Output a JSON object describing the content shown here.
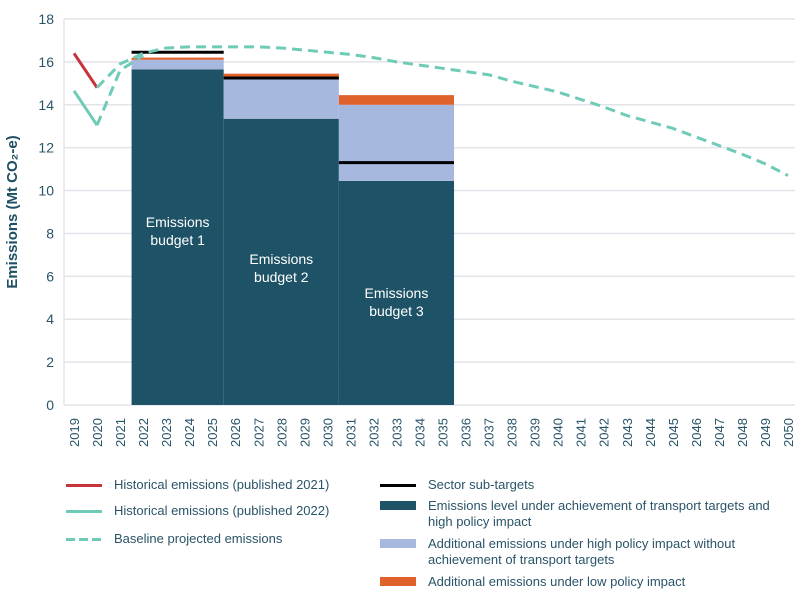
{
  "chart_data": {
    "type": "bar",
    "ylabel": "Emissions (Mt CO₂-e)",
    "ylim": [
      0,
      18
    ],
    "yticks": [
      "0",
      "2",
      "4",
      "6",
      "8",
      "10",
      "12",
      "14",
      "16",
      "18"
    ],
    "x": [
      2019,
      2020,
      2021,
      2022,
      2023,
      2024,
      2025,
      2026,
      2027,
      2028,
      2029,
      2030,
      2031,
      2032,
      2033,
      2034,
      2035,
      2036,
      2037,
      2038,
      2039,
      2040,
      2041,
      2042,
      2043,
      2044,
      2045,
      2046,
      2047,
      2048,
      2049,
      2050
    ],
    "grid": "horizontal",
    "legend_placement": "bottom",
    "colors": {
      "historical_2021": "#c8323a",
      "historical_2022": "#6fcbb8",
      "baseline": "#6fcbb8",
      "sub_targets": "#000000",
      "level_high": "#1e5266",
      "additional_high": "#a7b8de",
      "additional_low": "#e0622b"
    },
    "lines": [
      {
        "name": "Historical emissions (published 2021)",
        "style": "solid",
        "x": [
          2019,
          2020
        ],
        "y": [
          16.4,
          14.8
        ]
      },
      {
        "name": "Historical emissions (published 2022)",
        "style": "solid",
        "x": [
          2019,
          2020
        ],
        "y": [
          14.65,
          13.05
        ]
      },
      {
        "name": "Baseline projected emissions",
        "style": "dashed",
        "x": [
          2020,
          2021,
          2022,
          2023,
          2024,
          2025,
          2026,
          2027,
          2028,
          2029,
          2030,
          2031,
          2032,
          2033,
          2034,
          2035,
          2036,
          2037,
          2038,
          2039,
          2040,
          2041,
          2042,
          2043,
          2044,
          2045,
          2046,
          2047,
          2048,
          2049,
          2050
        ],
        "y": [
          14.8,
          15.9,
          16.4,
          16.65,
          16.7,
          16.7,
          16.7,
          16.7,
          16.65,
          16.55,
          16.45,
          16.35,
          16.2,
          16.0,
          15.85,
          15.7,
          15.55,
          15.4,
          15.1,
          14.85,
          14.6,
          14.25,
          13.9,
          13.5,
          13.2,
          12.9,
          12.5,
          12.1,
          11.7,
          11.25,
          10.7
        ]
      },
      {
        "name": "Baseline projected emissions",
        "style": "dashed",
        "x": [
          2020,
          2021,
          2022
        ],
        "y": [
          13.05,
          15.6,
          16.3
        ]
      }
    ],
    "budgets": [
      {
        "label": "Emissions budget 1",
        "from": 2022,
        "to": 2025,
        "level_high": 15.65,
        "additional_high": 0.45,
        "additional_low": 0.1,
        "sub_target": 16.45
      },
      {
        "label": "Emissions budget 2",
        "from": 2026,
        "to": 2030,
        "level_high": 13.35,
        "additional_high": 1.85,
        "additional_low": 0.25,
        "sub_target": 15.25
      },
      {
        "label": "Emissions budget 3",
        "from": 2031,
        "to": 2035,
        "level_high": 10.45,
        "additional_high": 3.55,
        "additional_low": 0.45,
        "sub_target": 11.3
      }
    ],
    "legend": [
      "Historical emissions (published 2021)",
      "Historical emissions (published 2022)",
      "Baseline projected emissions",
      "Sector sub-targets",
      "Emissions level under achievement of transport targets and high policy impact",
      "Additional emissions under high policy impact without achievement of transport targets",
      "Additional emissions under low policy impact"
    ]
  }
}
